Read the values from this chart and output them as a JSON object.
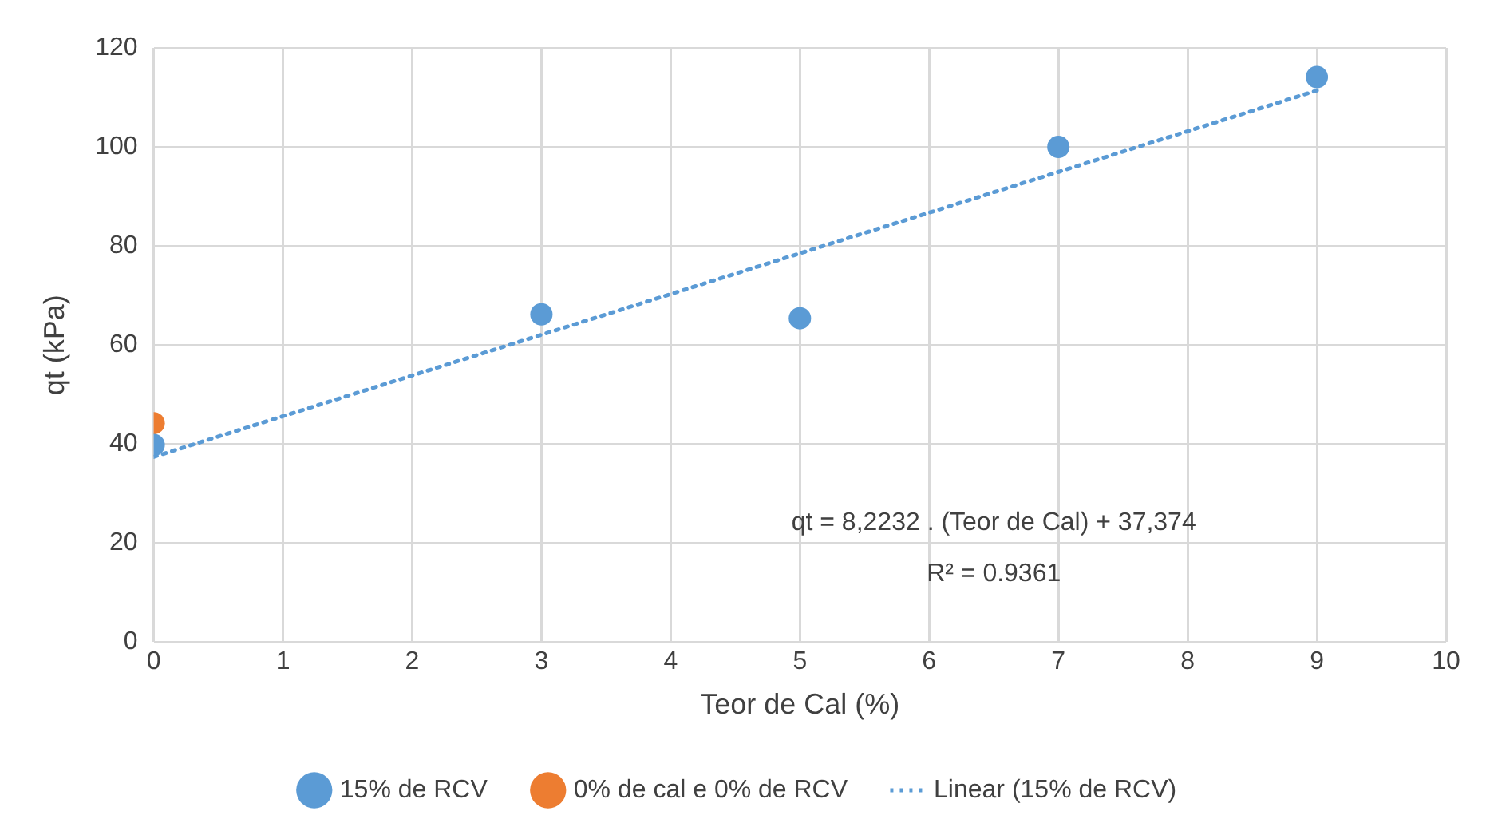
{
  "chart_data": {
    "type": "scatter",
    "xlabel": "Teor de Cal (%)",
    "ylabel": "qt (kPa)",
    "xlim": [
      0,
      10
    ],
    "xticks": [
      0,
      1,
      2,
      3,
      4,
      5,
      6,
      7,
      8,
      9,
      10
    ],
    "ylim": [
      0,
      120
    ],
    "yticks": [
      0,
      20,
      40,
      60,
      80,
      100,
      120
    ],
    "grid": true,
    "legend": "bottom",
    "marker": "circle",
    "series": [
      {
        "name": "15% de RCV",
        "color": "#5b9bd5",
        "x": [
          0,
          3,
          5,
          7,
          9
        ],
        "values": [
          39.8,
          66.2,
          65.4,
          100,
          114.1
        ]
      },
      {
        "name": "0% de cal e 0% de RCV",
        "color": "#ed7d31",
        "x": [
          0
        ],
        "values": [
          44.2
        ]
      },
      {
        "name": "Linear (15% de RCV)",
        "type": "line",
        "line_style": "dotted",
        "marker": "none",
        "color": "#5b9bd5",
        "x": [
          0,
          9
        ],
        "values": [
          37.4,
          111.4
        ]
      }
    ],
    "annotations": [
      "qt = 8,2232 . (Teor de Cal) + 37,374",
      "R² = 0.9361"
    ]
  }
}
